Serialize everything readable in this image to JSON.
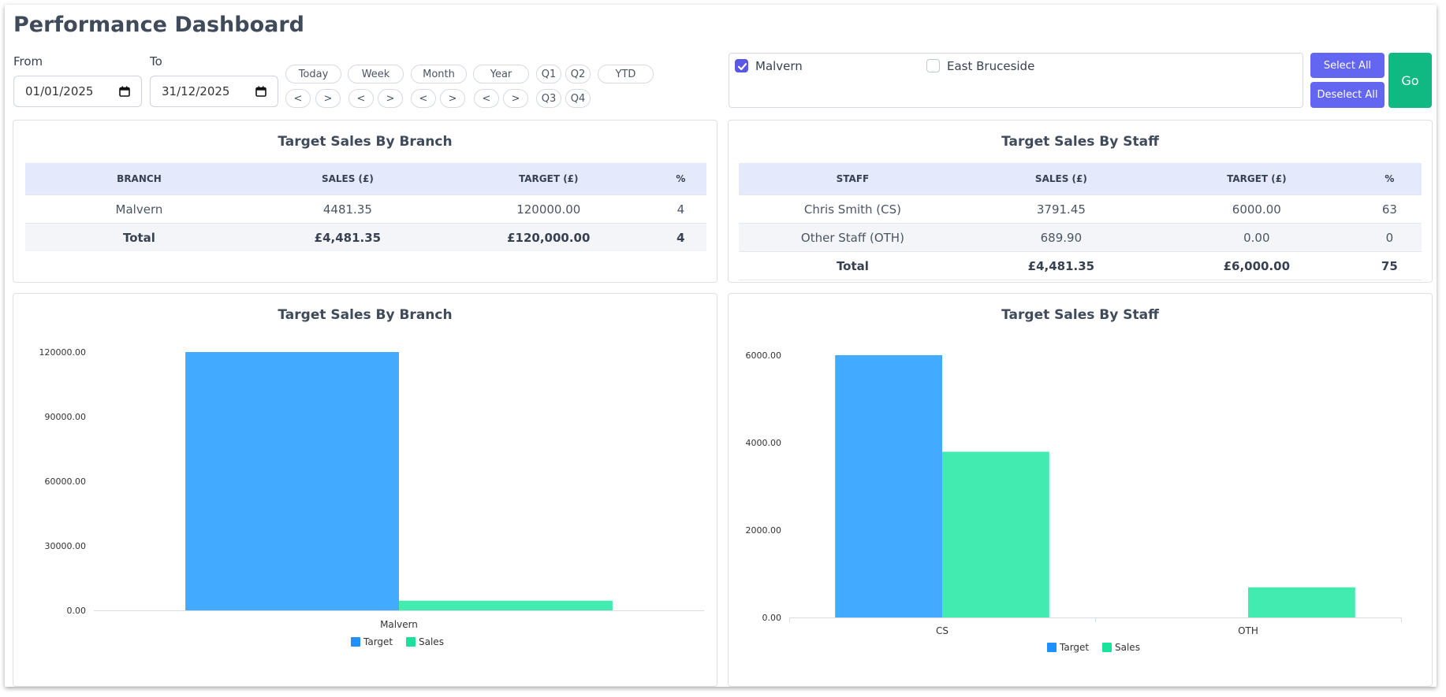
{
  "header": {
    "title": "Performance Dashboard"
  },
  "dates": {
    "from_label": "From",
    "to_label": "To",
    "from_value": "01/01/2025",
    "to_value": "31/12/2025"
  },
  "periods": {
    "today": "Today",
    "week": "Week",
    "month": "Month",
    "year": "Year",
    "q1": "Q1",
    "q2": "Q2",
    "q3": "Q3",
    "q4": "Q4",
    "ytd": "YTD",
    "prev": "<",
    "next": ">"
  },
  "branches": [
    {
      "label": "Malvern",
      "checked": true
    },
    {
      "label": "East Bruceside",
      "checked": false
    }
  ],
  "actions": {
    "select_all": "Select All",
    "deselect_all": "Deselect All",
    "go": "Go"
  },
  "branch_table": {
    "title": "Target Sales By Branch",
    "headers": [
      "BRANCH",
      "SALES (£)",
      "TARGET (£)",
      "%"
    ],
    "rows": [
      [
        "Malvern",
        "4481.35",
        "120000.00",
        "4"
      ]
    ],
    "total": [
      "Total",
      "£4,481.35",
      "£120,000.00",
      "4"
    ]
  },
  "staff_table": {
    "title": "Target Sales By Staff",
    "headers": [
      "STAFF",
      "SALES (£)",
      "TARGET (£)",
      "%"
    ],
    "rows": [
      [
        "Chris Smith (CS)",
        "3791.45",
        "6000.00",
        "63"
      ],
      [
        "Other Staff (OTH)",
        "689.90",
        "0.00",
        "0"
      ]
    ],
    "total": [
      "Total",
      "£4,481.35",
      "£6,000.00",
      "75"
    ]
  },
  "colors": {
    "target": "#42aaff",
    "sales": "#42ebb0"
  },
  "chart_data": [
    {
      "type": "bar",
      "title": "Target Sales By Branch",
      "categories": [
        "Malvern"
      ],
      "series": [
        {
          "name": "Target",
          "values": [
            120000
          ]
        },
        {
          "name": "Sales",
          "values": [
            4481.35
          ]
        }
      ],
      "ylim": [
        0,
        120000
      ],
      "yticks": [
        "0.00",
        "30000.00",
        "60000.00",
        "90000.00",
        "120000.00"
      ],
      "legend": "bottom"
    },
    {
      "type": "bar",
      "title": "Target Sales By Staff",
      "categories": [
        "CS",
        "OTH"
      ],
      "series": [
        {
          "name": "Target",
          "values": [
            6000,
            0
          ]
        },
        {
          "name": "Sales",
          "values": [
            3791.45,
            689.9
          ]
        }
      ],
      "ylim": [
        0,
        6000
      ],
      "yticks": [
        "0.00",
        "2000.00",
        "4000.00",
        "6000.00"
      ],
      "legend": "bottom"
    }
  ]
}
